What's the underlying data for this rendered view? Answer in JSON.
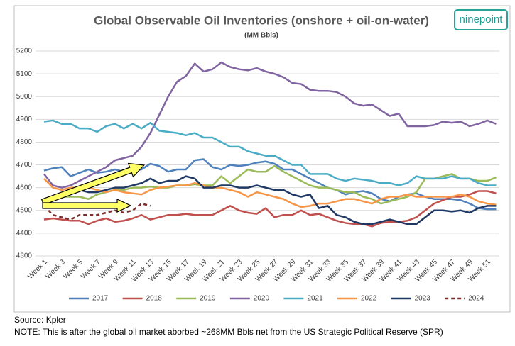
{
  "chart_data": {
    "type": "line",
    "title": "Global Observable Oil Inventories (onshore + oil-on-water)",
    "subtitle": "(MM Bbls)",
    "logo": "ninepoint",
    "source": "Source: Kpler",
    "note": "NOTE: This is after the global oil market aborbed ~268MM Bbls net from the US Strategic Political Reserve (SPR)",
    "categories": [
      "Week 1",
      null,
      "Week 3",
      null,
      "Week 5",
      null,
      "Week 7",
      null,
      "Week 9",
      null,
      "Week 11",
      null,
      "Week 13",
      null,
      "Week 15",
      null,
      "Week 17",
      null,
      "Week 19",
      null,
      "Week 21",
      null,
      "Week 23",
      null,
      "Week 25",
      null,
      "Week 27",
      null,
      "Week 29",
      null,
      "Week 31",
      null,
      "Week 33",
      null,
      "Week 35",
      null,
      "Week 37",
      null,
      "Week 39",
      null,
      "Week 41",
      null,
      "Week 43",
      null,
      "Week 45",
      null,
      "Week 47",
      null,
      "Week 49",
      null,
      "Week 51",
      null
    ],
    "ylim": [
      4300,
      5200
    ],
    "yticks": [
      4300,
      4400,
      4500,
      4600,
      4700,
      4800,
      4900,
      5000,
      5100,
      5200
    ],
    "grid": true,
    "legend": "bottom",
    "series": [
      {
        "name": "2017",
        "color": "#4f81bd",
        "values": [
          4675,
          4685,
          4690,
          4650,
          4665,
          4680,
          4665,
          4670,
          4680,
          4670,
          4675,
          4680,
          4705,
          4695,
          4670,
          4680,
          4680,
          4720,
          4725,
          4690,
          4680,
          4700,
          4695,
          4700,
          4710,
          4715,
          4705,
          4680,
          4680,
          4660,
          4640,
          4620,
          4600,
          4590,
          4570,
          4580,
          4585,
          4575,
          4550,
          4540,
          4560,
          4570,
          4575,
          4560,
          4550,
          4550,
          4550,
          4545,
          4530,
          4510,
          4505,
          4505
        ]
      },
      {
        "name": "2018",
        "color": "#c0504d",
        "values": [
          4460,
          4465,
          4460,
          4455,
          4455,
          4440,
          4455,
          4465,
          4450,
          4455,
          4465,
          4480,
          4460,
          4470,
          4480,
          4480,
          4485,
          4480,
          4480,
          4480,
          4500,
          4520,
          4500,
          4490,
          4485,
          4510,
          4470,
          4480,
          4480,
          4500,
          4480,
          4485,
          4470,
          4455,
          4445,
          4440,
          4440,
          4430,
          4445,
          4450,
          4450,
          4455,
          4470,
          4500,
          4530,
          4545,
          4560,
          4560,
          4570,
          4585,
          4585,
          4575
        ]
      },
      {
        "name": "2019",
        "color": "#9bbb59",
        "values": [
          4550,
          4560,
          4560,
          4560,
          4560,
          4550,
          4570,
          4580,
          4590,
          4590,
          4600,
          4600,
          4605,
          4600,
          4600,
          4610,
          4610,
          4615,
          4610,
          4610,
          4650,
          4620,
          4650,
          4680,
          4670,
          4670,
          4695,
          4670,
          4650,
          4630,
          4610,
          4600,
          4600,
          4590,
          4580,
          4580,
          4560,
          4550,
          4530,
          4540,
          4550,
          4560,
          4580,
          4640,
          4640,
          4650,
          4660,
          4640,
          4640,
          4630,
          4630,
          4645
        ]
      },
      {
        "name": "2020",
        "color": "#8064a2",
        "values": [
          4660,
          4610,
          4600,
          4610,
          4630,
          4650,
          4670,
          4690,
          4720,
          4730,
          4740,
          4780,
          4840,
          4920,
          5000,
          5065,
          5090,
          5145,
          5110,
          5120,
          5150,
          5130,
          5120,
          5115,
          5125,
          5110,
          5100,
          5085,
          5060,
          5055,
          5030,
          5025,
          5025,
          5020,
          5000,
          4970,
          4960,
          4965,
          4940,
          4915,
          4925,
          4870,
          4870,
          4870,
          4875,
          4890,
          4885,
          4890,
          4870,
          4880,
          4895,
          4880
        ]
      },
      {
        "name": "2021",
        "color": "#4bacc6",
        "values": [
          4890,
          4895,
          4880,
          4880,
          4860,
          4860,
          4845,
          4870,
          4880,
          4860,
          4880,
          4860,
          4885,
          4850,
          4845,
          4840,
          4830,
          4840,
          4820,
          4820,
          4800,
          4780,
          4780,
          4760,
          4750,
          4740,
          4740,
          4720,
          4700,
          4700,
          4660,
          4660,
          4660,
          4640,
          4630,
          4640,
          4635,
          4630,
          4620,
          4620,
          4610,
          4620,
          4650,
          4640,
          4640,
          4640,
          4650,
          4640,
          4640,
          4620,
          4610,
          4610
        ]
      },
      {
        "name": "2022",
        "color": "#f79646",
        "values": [
          4640,
          4600,
          4590,
          4600,
          4600,
          4600,
          4590,
          4580,
          4590,
          4580,
          4575,
          4570,
          4590,
          4600,
          4605,
          4610,
          4610,
          4620,
          4610,
          4600,
          4600,
          4590,
          4580,
          4560,
          4580,
          4570,
          4560,
          4550,
          4530,
          4515,
          4520,
          4530,
          4530,
          4540,
          4550,
          4550,
          4540,
          4530,
          4550,
          4560,
          4560,
          4570,
          4560,
          4560,
          4560,
          4560,
          4560,
          4570,
          4560,
          4540,
          4530,
          4525
        ]
      },
      {
        "name": "2023",
        "color": "#1f3864",
        "values": [
          4550,
          4550,
          4560,
          4580,
          4590,
          4580,
          4580,
          4590,
          4600,
          4600,
          4610,
          4620,
          4640,
          4620,
          4630,
          4630,
          4650,
          4640,
          4600,
          4600,
          4610,
          4610,
          4600,
          4600,
          4610,
          4600,
          4590,
          4590,
          4570,
          4560,
          4570,
          4510,
          4520,
          4480,
          4470,
          4450,
          4440,
          4440,
          4450,
          4460,
          4450,
          4440,
          4440,
          4470,
          4500,
          4500,
          4495,
          4500,
          4490,
          4510,
          4520,
          4520
        ]
      },
      {
        "name": "2024",
        "color": "#7b2c2c",
        "dashed": true,
        "values": [
          4520,
          4480,
          4470,
          4460,
          4480,
          4480,
          4480,
          4490,
          4500,
          4490,
          4500,
          4530,
          4520,
          null,
          null,
          null,
          null,
          null,
          null,
          null,
          null,
          null,
          null,
          null,
          null,
          null,
          null,
          null,
          null,
          null,
          null,
          null,
          null,
          null,
          null,
          null,
          null,
          null,
          null,
          null,
          null,
          null,
          null,
          null,
          null,
          null,
          null,
          null,
          null,
          null,
          null,
          null
        ]
      }
    ]
  }
}
